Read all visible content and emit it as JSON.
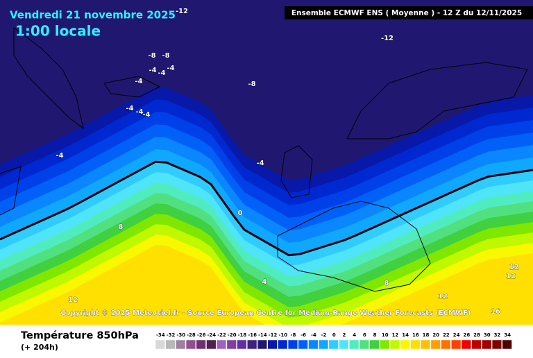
{
  "header": {
    "date": "Vendredi 21 novembre 2025",
    "time": "1:00 locale",
    "model": "Ensemble ECMWF ENS  ( Moyenne )  - 12 Z du 12/11/2025"
  },
  "map": {
    "contour_labels": [
      -12,
      -12,
      -8,
      -8,
      -8,
      -4,
      -4,
      -4,
      -4,
      -4,
      -4,
      -4,
      -4,
      -4,
      0,
      8,
      4,
      8,
      12,
      12,
      12,
      12,
      16
    ]
  },
  "copyright": "Copyright © 2025 Meteociel.fr - Source European Centre for Medium-Range Weather Forecasts (ECMWF)",
  "legend": {
    "title": "Température 850hPa",
    "lead": "(+ 204h)",
    "ticks": [
      -34,
      -32,
      -30,
      -28,
      -26,
      -24,
      -22,
      -20,
      -18,
      -16,
      -14,
      -12,
      -10,
      -8,
      -6,
      -4,
      -2,
      0,
      2,
      4,
      6,
      8,
      10,
      12,
      14,
      16,
      18,
      20,
      22,
      24,
      26,
      28,
      30,
      32,
      34
    ],
    "colors": [
      "#d8d8d8",
      "#b8b8b8",
      "#a080a0",
      "#905090",
      "#703070",
      "#502050",
      "#a060c0",
      "#8040a0",
      "#6030a0",
      "#402080",
      "#201870",
      "#0818a8",
      "#0028d0",
      "#0040e8",
      "#0060f8",
      "#0a86ff",
      "#10a8ff",
      "#30ccff",
      "#50e4f8",
      "#50ecc0",
      "#50e080",
      "#40d040",
      "#80e800",
      "#c0f800",
      "#f8f800",
      "#ffe000",
      "#ffc000",
      "#ffa000",
      "#ff7000",
      "#ff4000",
      "#f00000",
      "#c00000",
      "#a00000",
      "#800000",
      "#500000"
    ]
  }
}
